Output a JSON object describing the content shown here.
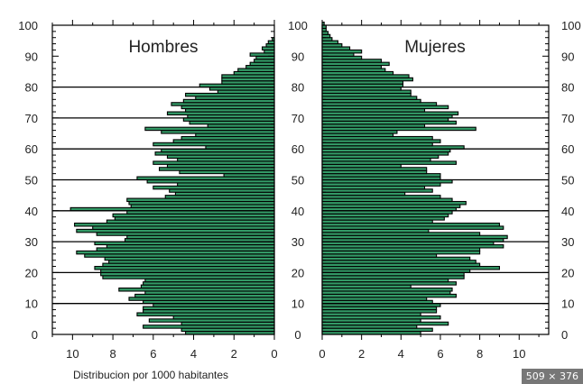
{
  "chart_data": {
    "type": "bar",
    "orientation": "horizontal",
    "xlabel": "Distribucion por 1000 habitantes",
    "ylim": [
      0,
      100
    ],
    "y_ticks": [
      0,
      10,
      20,
      30,
      40,
      50,
      60,
      70,
      80,
      90,
      100
    ],
    "grid_lines": [
      10,
      20,
      30,
      40,
      50,
      60,
      70,
      80
    ],
    "bar_color": "#339966",
    "panels": [
      {
        "title": "Hombres",
        "direction": "right-to-left",
        "xlim": [
          0,
          11
        ],
        "x_ticks": [
          10,
          8,
          6,
          4,
          2,
          0
        ],
        "y_tick_side": "both",
        "ages": [
          0,
          1,
          2,
          3,
          4,
          5,
          6,
          7,
          8,
          9,
          10,
          11,
          12,
          13,
          14,
          15,
          16,
          17,
          18,
          19,
          20,
          21,
          22,
          23,
          24,
          25,
          26,
          27,
          28,
          29,
          30,
          31,
          32,
          33,
          34,
          35,
          36,
          37,
          38,
          39,
          40,
          41,
          42,
          43,
          44,
          45,
          46,
          47,
          48,
          49,
          50,
          51,
          52,
          53,
          54,
          55,
          56,
          57,
          58,
          59,
          60,
          61,
          62,
          63,
          64,
          65,
          66,
          67,
          68,
          69,
          70,
          71,
          72,
          73,
          74,
          75,
          76,
          77,
          78,
          79,
          80,
          81,
          82,
          83,
          84,
          85,
          86,
          87,
          88,
          89,
          90,
          91,
          92,
          93,
          94,
          95
        ],
        "values": [
          4.4,
          4.6,
          6.5,
          4.6,
          6.2,
          5.0,
          6.8,
          6.5,
          6.5,
          6.0,
          6.5,
          7.2,
          6.9,
          6.4,
          7.7,
          6.6,
          6.5,
          6.4,
          8.5,
          8.6,
          8.6,
          8.9,
          8.5,
          8.2,
          8.4,
          9.4,
          9.8,
          8.8,
          8.3,
          8.9,
          7.4,
          7.3,
          8.8,
          9.8,
          9.0,
          9.9,
          8.3,
          7.9,
          8.0,
          7.3,
          10.1,
          7.1,
          7.2,
          7.3,
          5.4,
          4.9,
          5.2,
          6.0,
          4.8,
          6.3,
          6.8,
          2.5,
          4.7,
          5.7,
          5.3,
          6.0,
          4.8,
          5.3,
          5.9,
          5.6,
          3.4,
          6.0,
          5.0,
          4.6,
          3.9,
          5.6,
          6.4,
          3.3,
          4.2,
          4.5,
          4.3,
          5.3,
          4.4,
          4.6,
          5.1,
          4.5,
          3.9,
          4.4,
          2.8,
          3.2,
          3.7,
          2.6,
          2.6,
          2.6,
          2.0,
          1.8,
          1.4,
          1.2,
          1.0,
          0.9,
          1.2,
          0.5,
          0.6,
          0.4,
          0.3,
          0.1
        ]
      },
      {
        "title": "Mujeres",
        "direction": "left-to-right",
        "xlim": [
          0,
          11.5
        ],
        "x_ticks": [
          0,
          2,
          4,
          6,
          8,
          10
        ],
        "y_tick_side": "right",
        "ages": [
          0,
          1,
          2,
          3,
          4,
          5,
          6,
          7,
          8,
          9,
          10,
          11,
          12,
          13,
          14,
          15,
          16,
          17,
          18,
          19,
          20,
          21,
          22,
          23,
          24,
          25,
          26,
          27,
          28,
          29,
          30,
          31,
          32,
          33,
          34,
          35,
          36,
          37,
          38,
          39,
          40,
          41,
          42,
          43,
          44,
          45,
          46,
          47,
          48,
          49,
          50,
          51,
          52,
          53,
          54,
          55,
          56,
          57,
          58,
          59,
          60,
          61,
          62,
          63,
          64,
          65,
          66,
          67,
          68,
          69,
          70,
          71,
          72,
          73,
          74,
          75,
          76,
          77,
          78,
          79,
          80,
          81,
          82,
          83,
          84,
          85,
          86,
          87,
          88,
          89,
          90,
          91,
          92,
          93,
          94,
          95,
          96,
          97,
          98,
          99,
          100
        ],
        "values": [
          5.0,
          5.6,
          4.8,
          6.4,
          5.0,
          6.0,
          5.0,
          5.8,
          5.8,
          6.0,
          5.6,
          5.3,
          6.8,
          6.5,
          6.6,
          4.5,
          6.8,
          6.4,
          7.2,
          7.2,
          7.5,
          9.0,
          8.0,
          7.8,
          7.5,
          5.8,
          8.0,
          8.0,
          9.2,
          8.7,
          9.2,
          9.4,
          8.0,
          5.4,
          9.2,
          9.0,
          5.6,
          6.2,
          6.4,
          6.6,
          6.8,
          7.0,
          7.3,
          6.6,
          6.0,
          4.2,
          5.6,
          5.2,
          6.0,
          6.6,
          6.0,
          6.0,
          5.3,
          5.3,
          4.0,
          6.8,
          5.5,
          5.9,
          6.4,
          6.5,
          7.2,
          5.6,
          6.0,
          5.6,
          3.6,
          3.8,
          7.8,
          5.2,
          6.8,
          6.4,
          6.6,
          6.9,
          5.2,
          6.4,
          5.8,
          5.0,
          4.8,
          4.5,
          4.5,
          4.0,
          4.1,
          4.1,
          4.6,
          4.4,
          3.6,
          3.2,
          3.0,
          3.4,
          3.0,
          2.0,
          1.6,
          2.0,
          1.4,
          1.0,
          0.8,
          0.5,
          0.4,
          0.3,
          0.2,
          0.2,
          0.1
        ]
      }
    ]
  },
  "badge": {
    "text": "509 × 376"
  }
}
